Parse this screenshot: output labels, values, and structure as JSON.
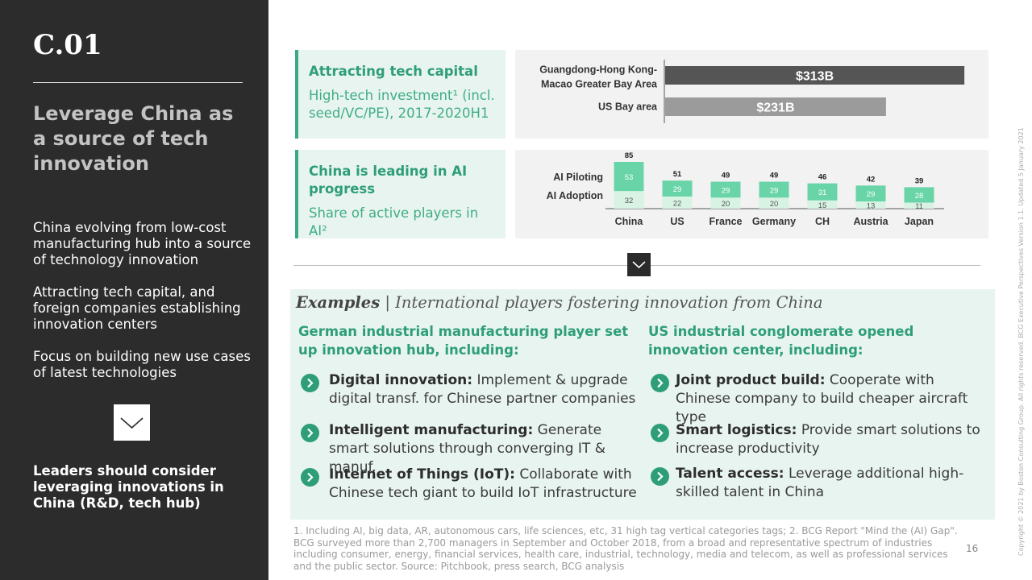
{
  "left_panel": {
    "code": "C.01",
    "headline": "Leverage China as a source of tech innovation",
    "points": [
      "China evolving from low-cost manufacturing hub into a source of technology innovation",
      "Attracting tech capital, and foreign companies establishing innovation centers",
      "Focus on building new use cases of latest technologies"
    ],
    "conclusion": "Leaders should consider leveraging innovations in China (R&D, tech hub)",
    "chevron_icon": "chevron-down-icon"
  },
  "stat_boxes": [
    {
      "title": "Attracting tech capital",
      "subtitle": "High-tech investment¹ (incl. seed/VC/PE), 2017-2020H1"
    },
    {
      "title": "China is leading in AI progress",
      "subtitle": "Share of active players in AI²"
    }
  ],
  "colors": {
    "accent_green": "#2e9e78",
    "light_green": "#e8f4ef",
    "dark_panel": "#2c2c2c",
    "bar_dark": "#555555",
    "bar_light": "#9b9b9b",
    "piloting": "#69d4a8",
    "adoption": "#d8f3e3"
  },
  "chart_data": [
    {
      "type": "bar",
      "orientation": "horizontal",
      "categories": [
        "Guangdong-Hong Kong-Macao Greater Bay Area",
        "US Bay area"
      ],
      "category_lines": [
        [
          "Guangdong-Hong Kong-",
          "Macao Greater Bay Area"
        ],
        [
          "US Bay area"
        ]
      ],
      "values": [
        313,
        231
      ],
      "value_labels": [
        "$313B",
        "$231B"
      ],
      "xlim": [
        0,
        350
      ]
    },
    {
      "type": "bar",
      "stacked": true,
      "categories": [
        "China",
        "US",
        "France",
        "Germany",
        "CH",
        "Austria",
        "Japan"
      ],
      "series": [
        {
          "name": "AI Adoption",
          "values": [
            32,
            22,
            20,
            20,
            15,
            13,
            11
          ]
        },
        {
          "name": "AI Piloting",
          "values": [
            53,
            29,
            29,
            29,
            31,
            29,
            28
          ]
        }
      ],
      "totals": [
        85,
        51,
        49,
        49,
        46,
        42,
        39
      ],
      "ylim": [
        0,
        85
      ]
    }
  ],
  "examples": {
    "title_bold": "Examples",
    "title_rest": "International players fostering innovation from China",
    "left": {
      "heading": "German industrial manufacturing player set up innovation hub, including:",
      "items": [
        {
          "bold": "Digital innovation:",
          "text": "Implement & upgrade digital transf. for Chinese partner companies"
        },
        {
          "bold": "Intelligent manufacturing:",
          "text": "Generate smart solutions through converging IT & manuf."
        },
        {
          "bold": "Internet of Things (IoT):",
          "text": "Collaborate with Chinese tech giant to build IoT infrastructure"
        }
      ]
    },
    "right": {
      "heading": "US industrial conglomerate opened innovation center, including:",
      "items": [
        {
          "bold": "Joint product build:",
          "text": "Cooperate with Chinese company to build cheaper aircraft type"
        },
        {
          "bold": "Smart logistics:",
          "text": "Provide smart solutions to increase productivity"
        },
        {
          "bold": "Talent access:",
          "text": "Leverage additional high-skilled talent in China"
        }
      ]
    },
    "bullet_icon": "chevron-right-circle-icon"
  },
  "footnote": "1. Including AI, big data, AR, autonomous cars, life sciences, etc, 31 high tag vertical categories tags; 2. BCG Report \"Mind the (AI) Gap\". BCG surveyed more than 2,700 managers  in September and October 2018, from a broad and representative spectrum of industries including consumer, energy, financial services, health care, industrial, technology, media and telecom, as well as professional services and the public sector.  Source: Pitchbook, press search, BCG analysis",
  "page_number": "16",
  "copyright": "Copyright © 2021 by Boston Consulting Group. All rights reserved. BCG Executive Perspectives Version 1.1.  Updated 5 January 2021"
}
